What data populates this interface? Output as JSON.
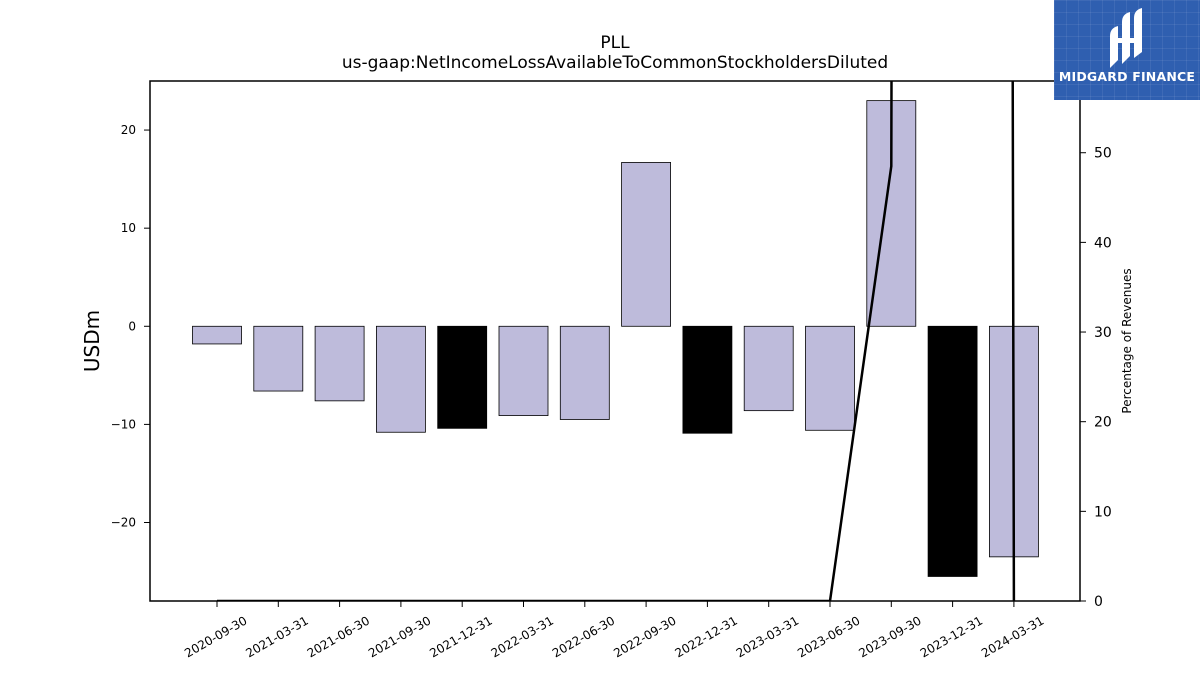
{
  "chart_data": {
    "type": "bar",
    "title": "PLL",
    "subtitle": "us-gaap:NetIncomeLossAvailableToCommonStockholdersDiluted",
    "ylabel": "USDm",
    "y2label": "Percentage of Revenues",
    "categories": [
      "2020-09-30",
      "2021-03-31",
      "2021-06-30",
      "2021-09-30",
      "2021-12-31",
      "2022-03-31",
      "2022-06-30",
      "2022-09-30",
      "2022-12-31",
      "2023-03-31",
      "2023-06-30",
      "2023-09-30",
      "2023-12-31",
      "2024-03-31"
    ],
    "values": [
      -1.8,
      -6.6,
      -7.6,
      -10.8,
      -10.4,
      -9.1,
      -9.5,
      16.7,
      -10.9,
      -8.6,
      -10.6,
      23.0,
      -25.5,
      -23.5
    ],
    "bar_colors": [
      "#bebbdb",
      "#bebbdb",
      "#bebbdb",
      "#bebbdb",
      "#000000",
      "#bebbdb",
      "#bebbdb",
      "#bebbdb",
      "#000000",
      "#bebbdb",
      "#bebbdb",
      "#bebbdb",
      "#000000",
      "#bebbdb"
    ],
    "line_series": {
      "values": [
        0,
        0,
        0,
        0,
        0,
        0,
        0,
        0,
        0,
        0,
        0,
        48.5,
        3000,
        0
      ]
    },
    "ylim": [
      -28,
      25
    ],
    "y_ticks": [
      -20,
      -10,
      0,
      10,
      20
    ],
    "y2lim": [
      0,
      58
    ],
    "y2_ticks": [
      0,
      10,
      20,
      30,
      40,
      50
    ],
    "grid": false,
    "legend": "none"
  },
  "logo": {
    "text": "MIDGARD FINANCE"
  },
  "colors": {
    "bar_default": "#bebbdb",
    "bar_highlight": "#000000",
    "line": "#000000",
    "logo_bg": "#2f5fb0"
  }
}
